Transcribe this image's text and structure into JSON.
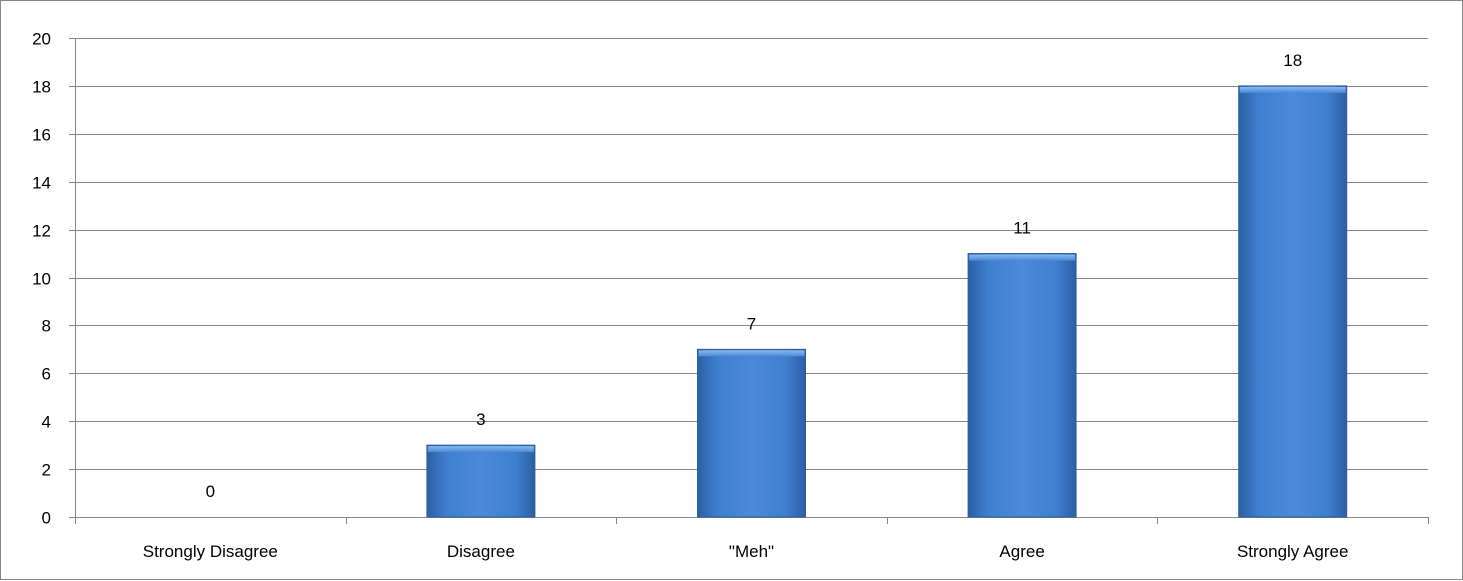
{
  "chart_data": {
    "type": "bar",
    "title": "",
    "xlabel": "",
    "ylabel": "",
    "categories": [
      "Strongly Disagree",
      "Disagree",
      "\"Meh\"",
      "Agree",
      "Strongly Agree"
    ],
    "values": [
      0,
      3,
      7,
      11,
      18
    ],
    "ylim": [
      0,
      20
    ],
    "yticks": [
      "0",
      "2",
      "4",
      "6",
      "8",
      "10",
      "12",
      "14",
      "16",
      "18",
      "20"
    ],
    "data_labels": [
      "0",
      "3",
      "7",
      "11",
      "18"
    ],
    "grid": true,
    "legend": "none",
    "colors": {
      "bar": "#3a78c6",
      "bar_edge": "#2d5f9e",
      "bar_highlight": "#6fa3e3",
      "grid": "#868686",
      "axis": "#868686"
    }
  }
}
